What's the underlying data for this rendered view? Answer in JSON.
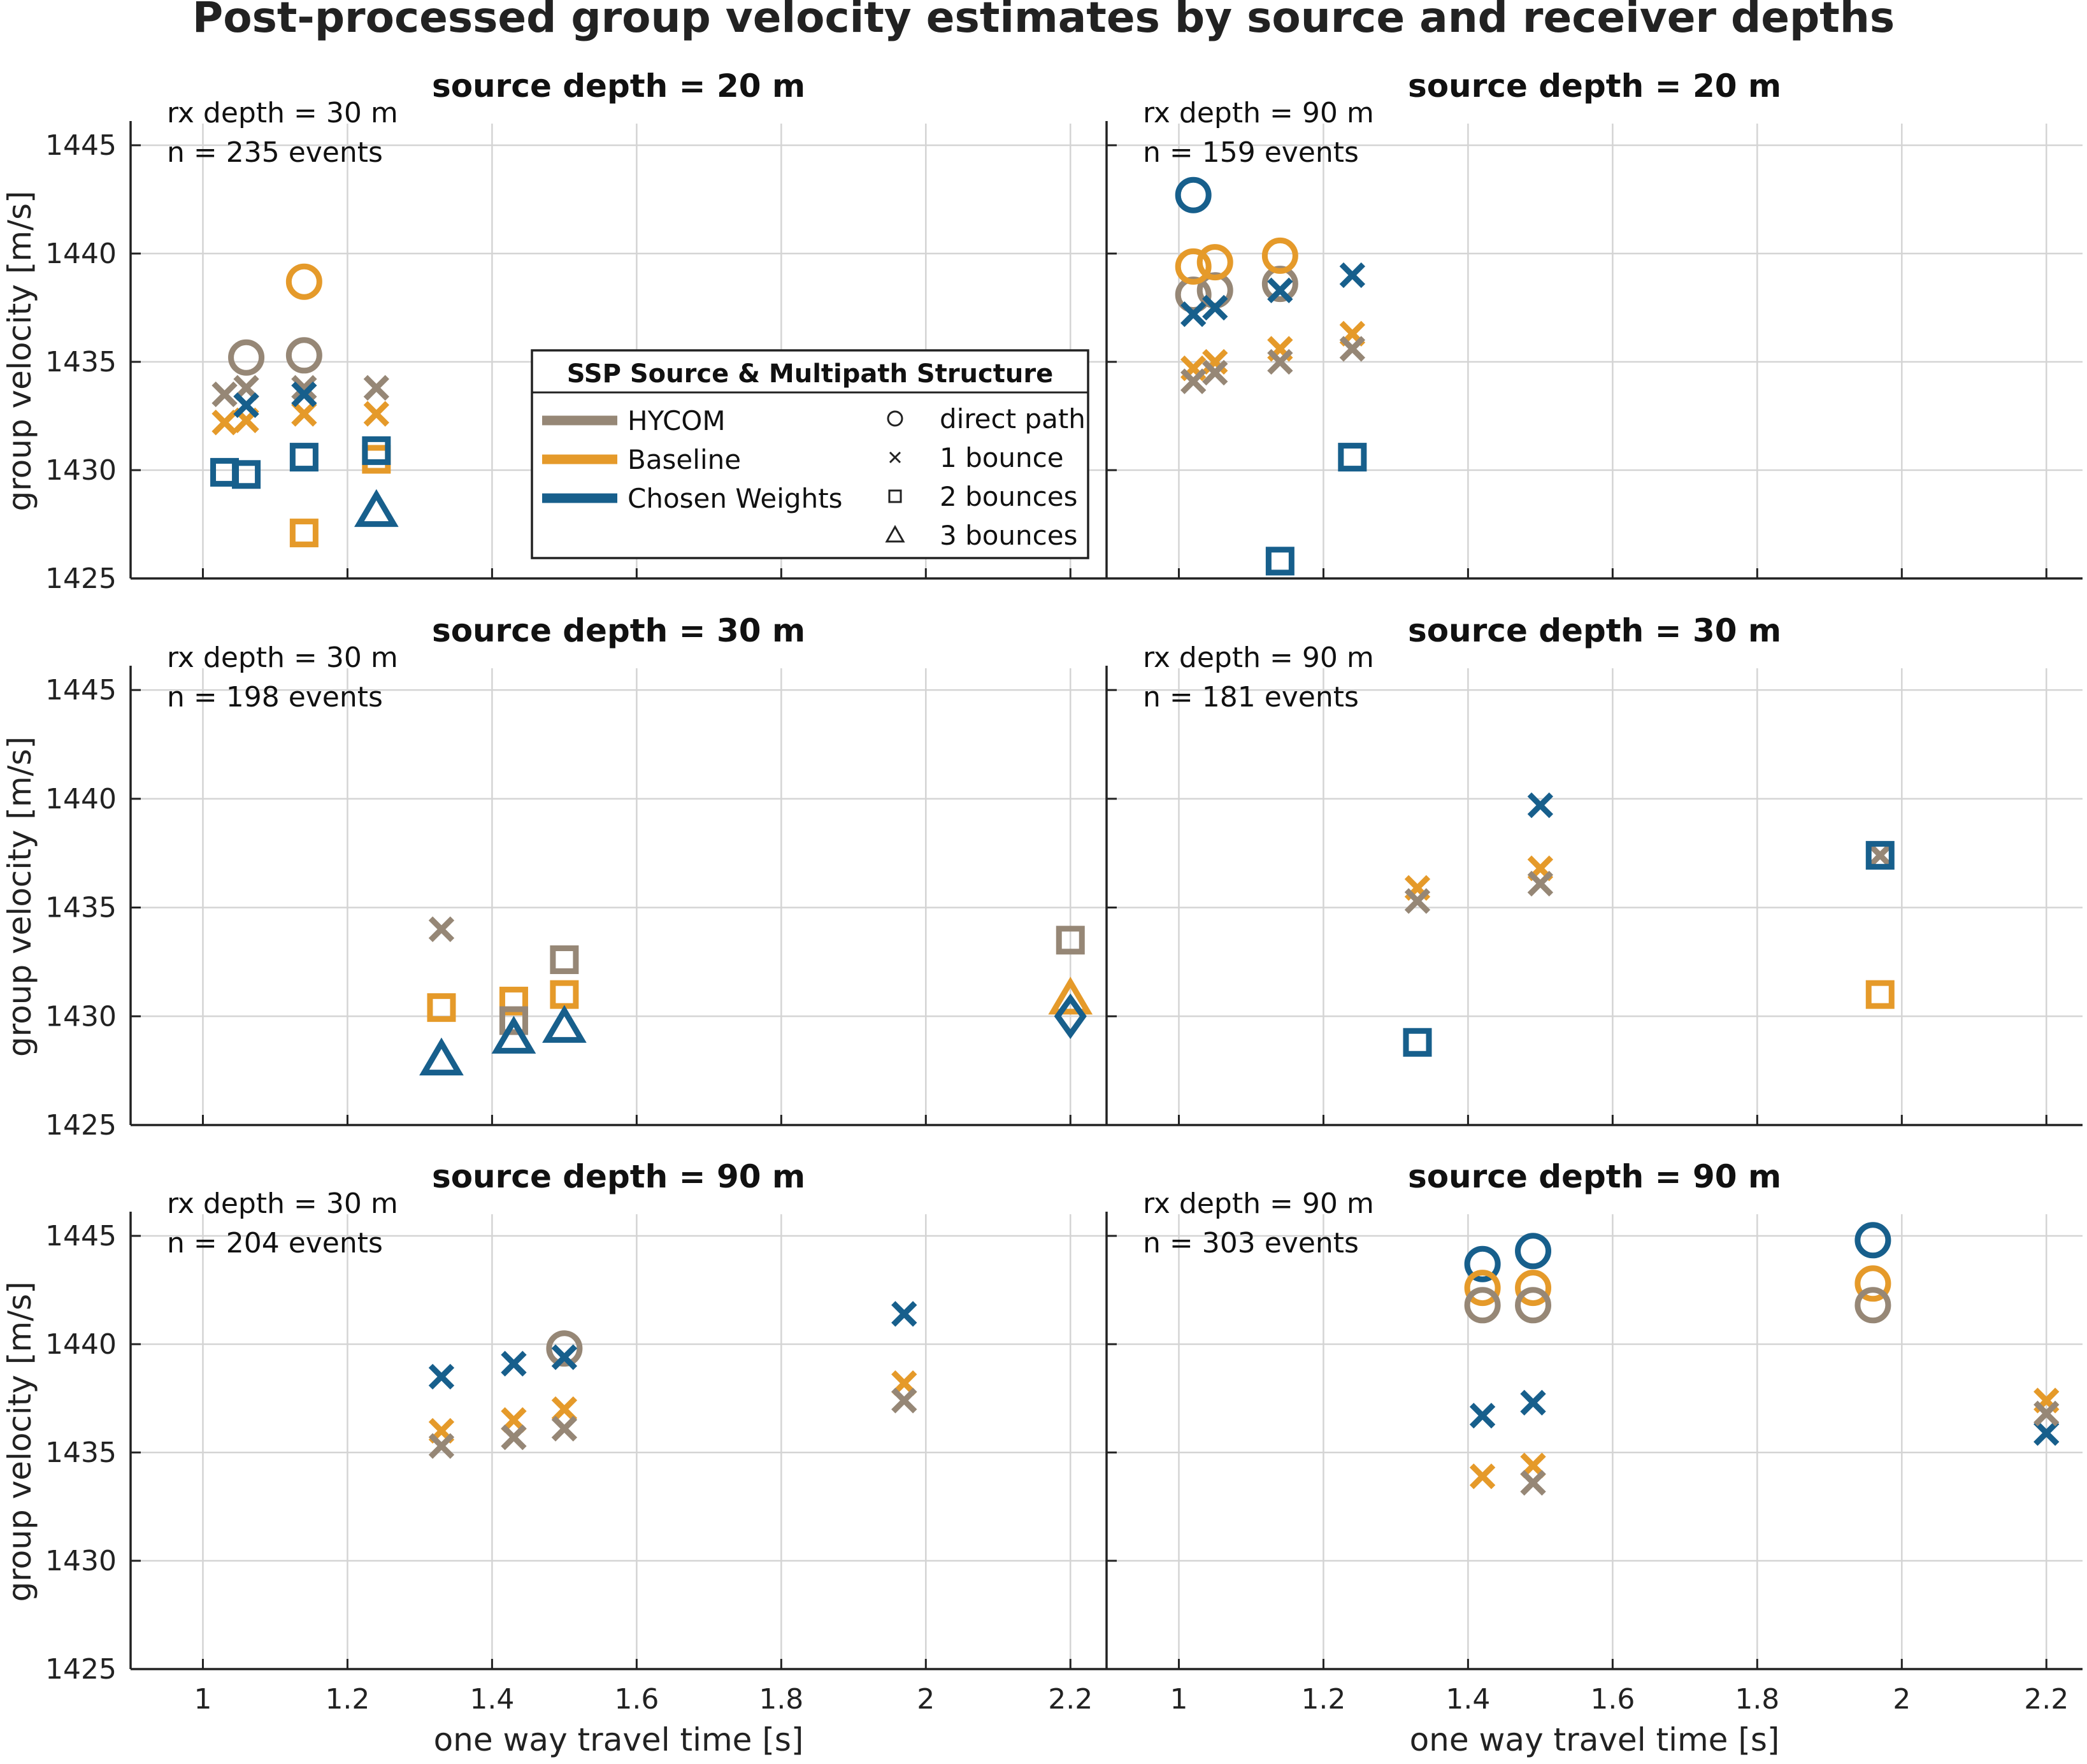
{
  "figure": {
    "title": "Post-processed group velocity estimates by source and receiver depths"
  },
  "legend": {
    "title": "SSP Source & Multipath Structure",
    "sources": [
      {
        "label": "HYCOM",
        "color": "#968776"
      },
      {
        "label": "Baseline",
        "color": "#E59A2A"
      },
      {
        "label": "Chosen Weights",
        "color": "#175F8C"
      }
    ],
    "paths": [
      {
        "label": "direct path",
        "marker": "circle"
      },
      {
        "label": "1 bounce",
        "marker": "x"
      },
      {
        "label": "2 bounces",
        "marker": "square"
      },
      {
        "label": "3 bounces",
        "marker": "triangle"
      }
    ]
  },
  "chart_data": [
    {
      "type": "scatter",
      "title": "source depth = 20 m",
      "rx_label": "rx depth = 30 m",
      "n_label": "n = 235 events",
      "xlabel": "",
      "ylabel": "group velocity [m/s]",
      "xlim": [
        0.9,
        2.25
      ],
      "ylim": [
        1425,
        1446
      ],
      "xticks": [
        "1",
        "1.2",
        "1.4",
        "1.6",
        "1.8",
        "2",
        "2.2"
      ],
      "yticks": [
        "1425",
        "1430",
        "1435",
        "1440",
        "1445"
      ],
      "grid": true,
      "legend_position": "center-right",
      "points": [
        {
          "x": 1.06,
          "y": 1435.2,
          "source": "HYCOM",
          "path": "direct path"
        },
        {
          "x": 1.14,
          "y": 1435.3,
          "source": "HYCOM",
          "path": "direct path"
        },
        {
          "x": 1.14,
          "y": 1438.7,
          "source": "Baseline",
          "path": "direct path"
        },
        {
          "x": 1.03,
          "y": 1433.5,
          "source": "HYCOM",
          "path": "1 bounce"
        },
        {
          "x": 1.06,
          "y": 1433.8,
          "source": "HYCOM",
          "path": "1 bounce"
        },
        {
          "x": 1.14,
          "y": 1433.8,
          "source": "HYCOM",
          "path": "1 bounce"
        },
        {
          "x": 1.24,
          "y": 1433.8,
          "source": "HYCOM",
          "path": "1 bounce"
        },
        {
          "x": 1.03,
          "y": 1432.2,
          "source": "Baseline",
          "path": "1 bounce"
        },
        {
          "x": 1.06,
          "y": 1432.3,
          "source": "Baseline",
          "path": "1 bounce"
        },
        {
          "x": 1.14,
          "y": 1432.6,
          "source": "Baseline",
          "path": "1 bounce"
        },
        {
          "x": 1.24,
          "y": 1432.6,
          "source": "Baseline",
          "path": "1 bounce"
        },
        {
          "x": 1.06,
          "y": 1433.0,
          "source": "Chosen Weights",
          "path": "1 bounce"
        },
        {
          "x": 1.14,
          "y": 1433.5,
          "source": "Chosen Weights",
          "path": "1 bounce"
        },
        {
          "x": 1.24,
          "y": 1430.5,
          "source": "Baseline",
          "path": "2 bounces"
        },
        {
          "x": 1.14,
          "y": 1427.1,
          "source": "Baseline",
          "path": "2 bounces"
        },
        {
          "x": 1.03,
          "y": 1429.9,
          "source": "Chosen Weights",
          "path": "2 bounces"
        },
        {
          "x": 1.06,
          "y": 1429.8,
          "source": "Chosen Weights",
          "path": "2 bounces"
        },
        {
          "x": 1.14,
          "y": 1430.6,
          "source": "Chosen Weights",
          "path": "2 bounces"
        },
        {
          "x": 1.24,
          "y": 1430.9,
          "source": "Chosen Weights",
          "path": "2 bounces"
        },
        {
          "x": 1.24,
          "y": 1428.1,
          "source": "Chosen Weights",
          "path": "3 bounces"
        }
      ]
    },
    {
      "type": "scatter",
      "title": "source depth = 20 m",
      "rx_label": "rx depth = 90 m",
      "n_label": "n = 159 events",
      "xlabel": "",
      "ylabel": "",
      "xlim": [
        0.9,
        2.25
      ],
      "ylim": [
        1425,
        1446
      ],
      "xticks": [
        "1",
        "1.2",
        "1.4",
        "1.6",
        "1.8",
        "2",
        "2.2"
      ],
      "yticks": [],
      "grid": true,
      "points": [
        {
          "x": 1.02,
          "y": 1442.7,
          "source": "Chosen Weights",
          "path": "direct path"
        },
        {
          "x": 1.02,
          "y": 1438.1,
          "source": "HYCOM",
          "path": "direct path"
        },
        {
          "x": 1.05,
          "y": 1438.3,
          "source": "HYCOM",
          "path": "direct path"
        },
        {
          "x": 1.14,
          "y": 1438.6,
          "source": "HYCOM",
          "path": "direct path"
        },
        {
          "x": 1.02,
          "y": 1439.4,
          "source": "Baseline",
          "path": "direct path"
        },
        {
          "x": 1.05,
          "y": 1439.6,
          "source": "Baseline",
          "path": "direct path"
        },
        {
          "x": 1.14,
          "y": 1439.9,
          "source": "Baseline",
          "path": "direct path"
        },
        {
          "x": 1.02,
          "y": 1437.2,
          "source": "Chosen Weights",
          "path": "1 bounce"
        },
        {
          "x": 1.05,
          "y": 1437.5,
          "source": "Chosen Weights",
          "path": "1 bounce"
        },
        {
          "x": 1.14,
          "y": 1438.3,
          "source": "Chosen Weights",
          "path": "1 bounce"
        },
        {
          "x": 1.24,
          "y": 1439.0,
          "source": "Chosen Weights",
          "path": "1 bounce"
        },
        {
          "x": 1.02,
          "y": 1434.7,
          "source": "Baseline",
          "path": "1 bounce"
        },
        {
          "x": 1.05,
          "y": 1435.0,
          "source": "Baseline",
          "path": "1 bounce"
        },
        {
          "x": 1.14,
          "y": 1435.6,
          "source": "Baseline",
          "path": "1 bounce"
        },
        {
          "x": 1.24,
          "y": 1436.3,
          "source": "Baseline",
          "path": "1 bounce"
        },
        {
          "x": 1.02,
          "y": 1434.1,
          "source": "HYCOM",
          "path": "1 bounce"
        },
        {
          "x": 1.05,
          "y": 1434.5,
          "source": "HYCOM",
          "path": "1 bounce"
        },
        {
          "x": 1.14,
          "y": 1435.0,
          "source": "HYCOM",
          "path": "1 bounce"
        },
        {
          "x": 1.24,
          "y": 1435.6,
          "source": "HYCOM",
          "path": "1 bounce"
        },
        {
          "x": 1.24,
          "y": 1430.6,
          "source": "Chosen Weights",
          "path": "2 bounces"
        },
        {
          "x": 1.14,
          "y": 1425.8,
          "source": "Chosen Weights",
          "path": "2 bounces"
        }
      ]
    },
    {
      "type": "scatter",
      "title": "source depth = 30 m",
      "rx_label": "rx depth = 30 m",
      "n_label": "n = 198 events",
      "xlabel": "",
      "ylabel": "group velocity [m/s]",
      "xlim": [
        0.9,
        2.25
      ],
      "ylim": [
        1425,
        1446
      ],
      "xticks": [
        "1",
        "1.2",
        "1.4",
        "1.6",
        "1.8",
        "2",
        "2.2"
      ],
      "yticks": [
        "1425",
        "1430",
        "1435",
        "1440",
        "1445"
      ],
      "grid": true,
      "points": [
        {
          "x": 1.33,
          "y": 1434.0,
          "source": "HYCOM",
          "path": "1 bounce"
        },
        {
          "x": 1.33,
          "y": 1430.4,
          "source": "Baseline",
          "path": "2 bounces"
        },
        {
          "x": 1.43,
          "y": 1430.7,
          "source": "Baseline",
          "path": "2 bounces"
        },
        {
          "x": 1.5,
          "y": 1431.0,
          "source": "Baseline",
          "path": "2 bounces"
        },
        {
          "x": 1.43,
          "y": 1429.8,
          "source": "HYCOM",
          "path": "2 bounces"
        },
        {
          "x": 1.5,
          "y": 1432.6,
          "source": "HYCOM",
          "path": "2 bounces"
        },
        {
          "x": 2.2,
          "y": 1433.5,
          "source": "HYCOM",
          "path": "2 bounces"
        },
        {
          "x": 1.33,
          "y": 1428.0,
          "source": "Chosen Weights",
          "path": "3 bounces"
        },
        {
          "x": 1.43,
          "y": 1429.0,
          "source": "Chosen Weights",
          "path": "3 bounces"
        },
        {
          "x": 1.5,
          "y": 1429.5,
          "source": "Chosen Weights",
          "path": "3 bounces"
        },
        {
          "x": 2.2,
          "y": 1430.8,
          "source": "Baseline",
          "path": "3 bounces"
        },
        {
          "x": 2.2,
          "y": 1430.0,
          "source": "Chosen Weights",
          "path": "4 bounces"
        }
      ]
    },
    {
      "type": "scatter",
      "title": "source depth = 30 m",
      "rx_label": "rx depth = 90 m",
      "n_label": "n = 181 events",
      "xlabel": "",
      "ylabel": "",
      "xlim": [
        0.9,
        2.25
      ],
      "ylim": [
        1425,
        1446
      ],
      "xticks": [
        "1",
        "1.2",
        "1.4",
        "1.6",
        "1.8",
        "2",
        "2.2"
      ],
      "yticks": [],
      "grid": true,
      "points": [
        {
          "x": 1.33,
          "y": 1435.9,
          "source": "Baseline",
          "path": "1 bounce"
        },
        {
          "x": 1.33,
          "y": 1435.3,
          "source": "HYCOM",
          "path": "1 bounce"
        },
        {
          "x": 1.5,
          "y": 1439.7,
          "source": "Chosen Weights",
          "path": "1 bounce"
        },
        {
          "x": 1.5,
          "y": 1436.8,
          "source": "Baseline",
          "path": "1 bounce"
        },
        {
          "x": 1.5,
          "y": 1436.1,
          "source": "HYCOM",
          "path": "1 bounce"
        },
        {
          "x": 1.97,
          "y": 1437.4,
          "source": "HYCOM",
          "path": "1 bounce"
        },
        {
          "x": 1.97,
          "y": 1437.4,
          "source": "Chosen Weights",
          "path": "2 bounces"
        },
        {
          "x": 1.97,
          "y": 1431.0,
          "source": "Baseline",
          "path": "2 bounces"
        },
        {
          "x": 1.33,
          "y": 1428.8,
          "source": "Chosen Weights",
          "path": "2 bounces"
        }
      ]
    },
    {
      "type": "scatter",
      "title": "source depth = 90 m",
      "rx_label": "rx depth = 30 m",
      "n_label": "n = 204 events",
      "xlabel": "one way travel time [s]",
      "ylabel": "group velocity [m/s]",
      "xlim": [
        0.9,
        2.25
      ],
      "ylim": [
        1425,
        1446
      ],
      "xticks": [
        "1",
        "1.2",
        "1.4",
        "1.6",
        "1.8",
        "2",
        "2.2"
      ],
      "yticks": [
        "1425",
        "1430",
        "1435",
        "1440",
        "1445"
      ],
      "grid": true,
      "points": [
        {
          "x": 1.5,
          "y": 1439.8,
          "source": "HYCOM",
          "path": "direct path"
        },
        {
          "x": 1.33,
          "y": 1438.5,
          "source": "Chosen Weights",
          "path": "1 bounce"
        },
        {
          "x": 1.43,
          "y": 1439.1,
          "source": "Chosen Weights",
          "path": "1 bounce"
        },
        {
          "x": 1.5,
          "y": 1439.4,
          "source": "Chosen Weights",
          "path": "1 bounce"
        },
        {
          "x": 1.97,
          "y": 1441.4,
          "source": "Chosen Weights",
          "path": "1 bounce"
        },
        {
          "x": 1.33,
          "y": 1436.0,
          "source": "Baseline",
          "path": "1 bounce"
        },
        {
          "x": 1.43,
          "y": 1436.5,
          "source": "Baseline",
          "path": "1 bounce"
        },
        {
          "x": 1.5,
          "y": 1437.0,
          "source": "Baseline",
          "path": "1 bounce"
        },
        {
          "x": 1.97,
          "y": 1438.2,
          "source": "Baseline",
          "path": "1 bounce"
        },
        {
          "x": 1.33,
          "y": 1435.3,
          "source": "HYCOM",
          "path": "1 bounce"
        },
        {
          "x": 1.43,
          "y": 1435.7,
          "source": "HYCOM",
          "path": "1 bounce"
        },
        {
          "x": 1.5,
          "y": 1436.1,
          "source": "HYCOM",
          "path": "1 bounce"
        },
        {
          "x": 1.97,
          "y": 1437.4,
          "source": "HYCOM",
          "path": "1 bounce"
        }
      ]
    },
    {
      "type": "scatter",
      "title": "source depth = 90 m",
      "rx_label": "rx depth = 90 m",
      "n_label": "n = 303 events",
      "xlabel": "one way travel time [s]",
      "ylabel": "",
      "xlim": [
        0.9,
        2.25
      ],
      "ylim": [
        1425,
        1446
      ],
      "xticks": [
        "1",
        "1.2",
        "1.4",
        "1.6",
        "1.8",
        "2",
        "2.2"
      ],
      "yticks": [],
      "grid": true,
      "points": [
        {
          "x": 1.42,
          "y": 1443.7,
          "source": "Chosen Weights",
          "path": "direct path"
        },
        {
          "x": 1.49,
          "y": 1444.3,
          "source": "Chosen Weights",
          "path": "direct path"
        },
        {
          "x": 1.96,
          "y": 1444.8,
          "source": "Chosen Weights",
          "path": "direct path"
        },
        {
          "x": 1.42,
          "y": 1442.6,
          "source": "Baseline",
          "path": "direct path"
        },
        {
          "x": 1.49,
          "y": 1442.6,
          "source": "Baseline",
          "path": "direct path"
        },
        {
          "x": 1.96,
          "y": 1442.8,
          "source": "Baseline",
          "path": "direct path"
        },
        {
          "x": 1.42,
          "y": 1441.8,
          "source": "HYCOM",
          "path": "direct path"
        },
        {
          "x": 1.49,
          "y": 1441.8,
          "source": "HYCOM",
          "path": "direct path"
        },
        {
          "x": 1.96,
          "y": 1441.8,
          "source": "HYCOM",
          "path": "direct path"
        },
        {
          "x": 1.42,
          "y": 1436.7,
          "source": "Chosen Weights",
          "path": "1 bounce"
        },
        {
          "x": 1.49,
          "y": 1437.3,
          "source": "Chosen Weights",
          "path": "1 bounce"
        },
        {
          "x": 2.2,
          "y": 1435.9,
          "source": "Chosen Weights",
          "path": "1 bounce"
        },
        {
          "x": 1.42,
          "y": 1433.9,
          "source": "Baseline",
          "path": "1 bounce"
        },
        {
          "x": 1.49,
          "y": 1434.4,
          "source": "Baseline",
          "path": "1 bounce"
        },
        {
          "x": 2.2,
          "y": 1437.4,
          "source": "Baseline",
          "path": "1 bounce"
        },
        {
          "x": 1.49,
          "y": 1433.6,
          "source": "HYCOM",
          "path": "1 bounce"
        },
        {
          "x": 2.2,
          "y": 1436.8,
          "source": "HYCOM",
          "path": "1 bounce"
        }
      ]
    }
  ]
}
